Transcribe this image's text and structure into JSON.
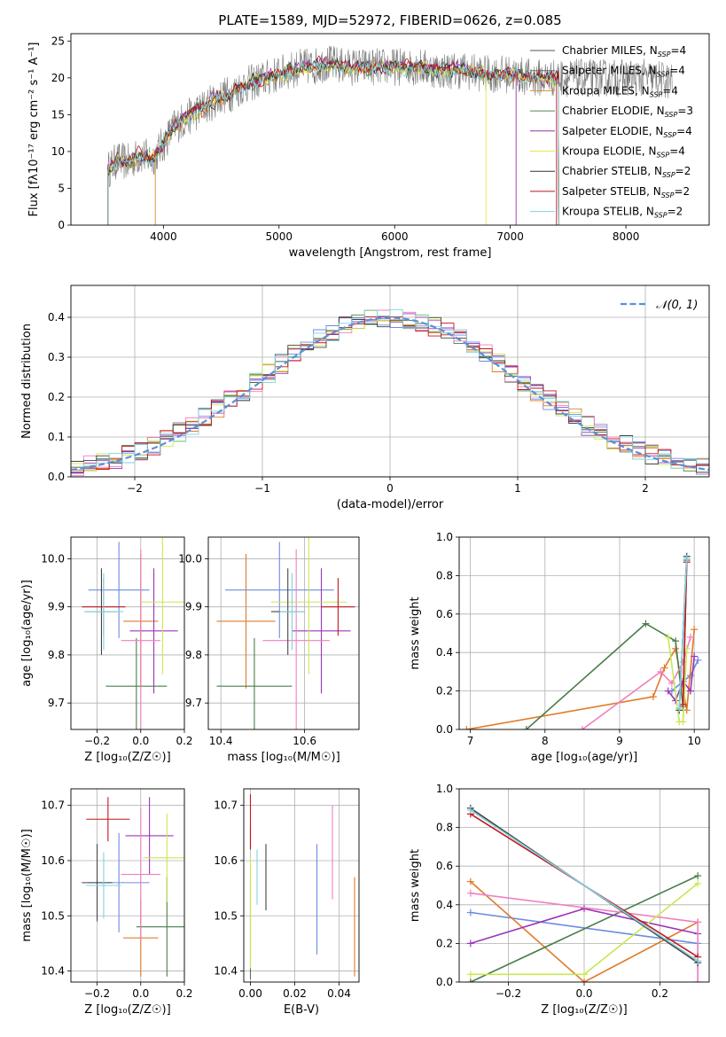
{
  "figure_title": "PLATE=1589, MJD=52972, FIBERID=0626, z=0.085",
  "colors": {
    "models": [
      "#555555",
      "#666666",
      "#d98d2e",
      "#4d8a4d",
      "#9932b0",
      "#e6e84a",
      "#333333",
      "#b8141b",
      "#7ad3e0"
    ],
    "fit": [
      "#6c8be0",
      "#e07b2a",
      "#4a7d4a",
      "#9b35b8",
      "#f07fc0",
      "#c8e852",
      "#444444",
      "#c4161c",
      "#7fd3e0"
    ],
    "grid": "#b0b0b0",
    "gaussian": "#5a90d8"
  },
  "chart_data": [
    {
      "id": "spectrum",
      "type": "line",
      "title": "PLATE=1589, MJD=52972, FIBERID=0626, z=0.085",
      "xlabel": "wavelength [Angstrom, rest frame]",
      "ylabel": "Flux [fλ10⁻¹⁷ erg cm⁻² s⁻¹ A⁻¹]",
      "xlim": [
        3200,
        8720
      ],
      "ylim": [
        0,
        26
      ],
      "xticks": [
        4000,
        5000,
        6000,
        7000,
        8000
      ],
      "yticks": [
        0,
        5,
        10,
        15,
        20,
        25
      ],
      "grid": false,
      "legend_position": "top-right",
      "legend": [
        "Chabrier MILES, N_SSP=4",
        "Salpeter MILES, N_SSP=4",
        "Kroupa MILES, N_SSP=4",
        "Chabrier ELODIE, N_SSP=3",
        "Salpeter ELODIE, N_SSP=4",
        "Kroupa ELODIE, N_SSP=4",
        "Chabrier STELIB, N_SSP=2",
        "Salpeter STELIB, N_SSP=2",
        "Kroupa STELIB, N_SSP=2"
      ],
      "continuum": {
        "x": [
          3520,
          3600,
          3700,
          3800,
          3900,
          4000,
          4100,
          4200,
          4300,
          4400,
          4500,
          4600,
          4700,
          4800,
          4900,
          5000,
          5100,
          5200,
          5300,
          5400,
          5600,
          5800,
          6000,
          6200,
          6400,
          6600,
          6800,
          7000,
          7200,
          7400,
          7600,
          7800,
          8000,
          8200,
          8400
        ],
        "y": [
          7.5,
          8.8,
          8.5,
          9.5,
          9.0,
          11.0,
          13.5,
          14.5,
          15.5,
          16.5,
          17.5,
          18.0,
          19.0,
          19.5,
          20.0,
          20.5,
          21.0,
          21.5,
          21.5,
          22.0,
          21.5,
          21.5,
          21.5,
          21.5,
          21.0,
          21.0,
          20.5,
          20.5,
          20.0,
          20.0,
          20.0,
          20.0,
          20.0,
          20.0,
          19.5
        ]
      },
      "model_range": [
        3520,
        7420
      ],
      "data_range": [
        3520,
        8400
      ]
    },
    {
      "id": "residuals",
      "type": "line",
      "xlabel": "(data-model)/error",
      "ylabel": "Normed distribution",
      "xlim": [
        -2.5,
        2.5
      ],
      "ylim": [
        0,
        0.48
      ],
      "xticks": [
        -2,
        -1,
        0,
        1,
        2
      ],
      "yticks": [
        0.0,
        0.1,
        0.2,
        0.3,
        0.4
      ],
      "grid": true,
      "legend_position": "top-right",
      "legend": [
        "𝒩(0, 1)"
      ],
      "bin_width": 0.1
    },
    {
      "id": "age_vs_Z",
      "type": "scatter",
      "xlabel": "Z [log₁₀(Z/Z☉)]",
      "ylabel": "age  [log₁₀(age/yr)]",
      "xlim": [
        -0.32,
        0.2
      ],
      "ylim": [
        9.645,
        10.045
      ],
      "xticks": [
        -0.2,
        0.0,
        0.2
      ],
      "yticks": [
        9.7,
        9.8,
        9.9,
        10.0
      ],
      "grid": true,
      "points": [
        {
          "x": -0.1,
          "y": 9.935,
          "xerr": 0.14,
          "yerr": 0.1
        },
        {
          "x": 0.0,
          "y": 9.87,
          "xerr": 0.08,
          "yerr": 0.14
        },
        {
          "x": -0.02,
          "y": 9.735,
          "xerr": 0.14,
          "yerr": 0.1
        },
        {
          "x": 0.06,
          "y": 9.85,
          "xerr": 0.11,
          "yerr": 0.13
        },
        {
          "x": 0.0,
          "y": 9.83,
          "xerr": 0.09,
          "yerr": 0.19
        },
        {
          "x": 0.1,
          "y": 9.91,
          "xerr": 0.1,
          "yerr": 0.15
        },
        {
          "x": -0.18,
          "y": 9.89,
          "xerr": 0.07,
          "yerr": 0.09
        },
        {
          "x": -0.17,
          "y": 9.9,
          "xerr": 0.1,
          "yerr": 0.06
        },
        {
          "x": -0.17,
          "y": 9.89,
          "xerr": 0.09,
          "yerr": 0.08
        }
      ]
    },
    {
      "id": "age_vs_mass",
      "type": "scatter",
      "xlabel": "mass [log₁₀(M/M☉)]",
      "ylabel": "",
      "xlim": [
        10.37,
        10.73
      ],
      "ylim": [
        9.645,
        10.045
      ],
      "xticks": [
        10.4,
        10.6
      ],
      "yticks": [
        9.7,
        9.8,
        9.9,
        10.0
      ],
      "grid": true,
      "points": [
        {
          "x": 10.54,
          "y": 9.935,
          "xerr": 0.13,
          "yerr": 0.1
        },
        {
          "x": 10.46,
          "y": 9.87,
          "xerr": 0.07,
          "yerr": 0.14
        },
        {
          "x": 10.48,
          "y": 9.735,
          "xerr": 0.09,
          "yerr": 0.1
        },
        {
          "x": 10.64,
          "y": 9.85,
          "xerr": 0.07,
          "yerr": 0.13
        },
        {
          "x": 10.58,
          "y": 9.83,
          "xerr": 0.08,
          "yerr": 0.19
        },
        {
          "x": 10.61,
          "y": 9.91,
          "xerr": 0.09,
          "yerr": 0.15
        },
        {
          "x": 10.56,
          "y": 9.89,
          "xerr": 0.04,
          "yerr": 0.09
        },
        {
          "x": 10.68,
          "y": 9.9,
          "xerr": 0.04,
          "yerr": 0.06
        },
        {
          "x": 10.57,
          "y": 9.89,
          "xerr": 0.03,
          "yerr": 0.08
        }
      ]
    },
    {
      "id": "mass_weight_vs_age",
      "type": "line",
      "xlabel": "age  [log₁₀(age/yr)]",
      "ylabel": "mass weight",
      "xlim": [
        6.85,
        10.2
      ],
      "ylim": [
        0,
        1.0
      ],
      "xticks": [
        7,
        8,
        9,
        10
      ],
      "yticks": [
        0.0,
        0.2,
        0.4,
        0.6,
        0.8,
        1.0
      ],
      "grid": true,
      "series": [
        {
          "x": [
            9.7,
            9.85,
            9.95,
            10.05
          ],
          "y": [
            0.2,
            0.25,
            0.28,
            0.36
          ]
        },
        {
          "x": [
            6.95,
            9.45,
            9.6,
            9.75,
            9.9,
            10.0
          ],
          "y": [
            0.0,
            0.17,
            0.32,
            0.42,
            0.1,
            0.52
          ]
        },
        {
          "x": [
            7.75,
            9.35,
            9.75,
            9.85,
            9.9
          ],
          "y": [
            0.0,
            0.55,
            0.46,
            0.12,
            0.88
          ]
        },
        {
          "x": [
            9.65,
            9.75,
            9.85,
            9.95,
            10.0
          ],
          "y": [
            0.2,
            0.15,
            0.25,
            0.2,
            0.38
          ]
        },
        {
          "x": [
            8.5,
            9.55,
            9.7,
            9.85,
            9.95
          ],
          "y": [
            0.0,
            0.3,
            0.24,
            0.35,
            0.48
          ]
        },
        {
          "x": [
            9.65,
            9.8,
            9.85,
            9.9
          ],
          "y": [
            0.48,
            0.04,
            0.04,
            0.42
          ]
        },
        {
          "x": [
            9.8,
            9.9
          ],
          "y": [
            0.1,
            0.9
          ]
        },
        {
          "x": [
            9.85,
            9.9
          ],
          "y": [
            0.13,
            0.87
          ]
        },
        {
          "x": [
            9.8,
            9.9
          ],
          "y": [
            0.11,
            0.89
          ]
        }
      ]
    },
    {
      "id": "mass_vs_Z",
      "type": "scatter",
      "xlabel": "Z [log₁₀(Z/Z☉)]",
      "ylabel": "mass [log₁₀(M/M☉)]",
      "xlim": [
        -0.32,
        0.2
      ],
      "ylim": [
        10.38,
        10.73
      ],
      "xticks": [
        -0.2,
        0.0,
        0.2
      ],
      "yticks": [
        10.4,
        10.5,
        10.6,
        10.7
      ],
      "grid": true,
      "points": [
        {
          "x": -0.1,
          "y": 10.56,
          "xerr": 0.14,
          "yerr": 0.09
        },
        {
          "x": 0.0,
          "y": 10.46,
          "xerr": 0.08,
          "yerr": 0.07
        },
        {
          "x": 0.12,
          "y": 10.48,
          "xerr": 0.14,
          "yerr": 0.09
        },
        {
          "x": 0.04,
          "y": 10.645,
          "xerr": 0.11,
          "yerr": 0.07
        },
        {
          "x": 0.0,
          "y": 10.575,
          "xerr": 0.09,
          "yerr": 0.12
        },
        {
          "x": 0.12,
          "y": 10.605,
          "xerr": 0.11,
          "yerr": 0.08
        },
        {
          "x": -0.2,
          "y": 10.56,
          "xerr": 0.07,
          "yerr": 0.07
        },
        {
          "x": -0.15,
          "y": 10.675,
          "xerr": 0.1,
          "yerr": 0.04
        },
        {
          "x": -0.17,
          "y": 10.555,
          "xerr": 0.08,
          "yerr": 0.06
        }
      ]
    },
    {
      "id": "mass_vs_ebv",
      "type": "scatter",
      "xlabel": "E(B-V)",
      "ylabel": "",
      "xlim": [
        -0.003,
        0.049
      ],
      "ylim": [
        10.38,
        10.73
      ],
      "xticks": [
        0.0,
        0.02,
        0.04
      ],
      "yticks": [
        10.4,
        10.5,
        10.6,
        10.7
      ],
      "grid": true,
      "points": [
        {
          "x": 0.03,
          "y": 10.53,
          "xerr": 0,
          "yerr": 0.1
        },
        {
          "x": 0.047,
          "y": 10.48,
          "xerr": 0,
          "yerr": 0.09
        },
        {
          "x": 0.0,
          "y": 10.475,
          "xerr": 0,
          "yerr": 0.09
        },
        {
          "x": 0.0,
          "y": 10.64,
          "xerr": 0,
          "yerr": 0.02
        },
        {
          "x": 0.037,
          "y": 10.615,
          "xerr": 0,
          "yerr": 0.085
        },
        {
          "x": 0.0,
          "y": 10.505,
          "xerr": 0,
          "yerr": 0.1
        },
        {
          "x": 0.007,
          "y": 10.57,
          "xerr": 0,
          "yerr": 0.06
        },
        {
          "x": 0.0,
          "y": 10.67,
          "xerr": 0,
          "yerr": 0.05
        },
        {
          "x": 0.003,
          "y": 10.57,
          "xerr": 0,
          "yerr": 0.05
        }
      ]
    },
    {
      "id": "mass_weight_vs_Z",
      "type": "line",
      "xlabel": "Z [log₁₀(Z/Z☉)]",
      "ylabel": "mass weight",
      "xlim": [
        -0.33,
        0.33
      ],
      "ylim": [
        0,
        1.0
      ],
      "xticks": [
        -0.2,
        0.0,
        0.2
      ],
      "yticks": [
        0.0,
        0.2,
        0.4,
        0.6,
        0.8,
        1.0
      ],
      "grid": true,
      "series": [
        {
          "x": [
            -0.3,
            0.3,
            0.3
          ],
          "y": [
            0.36,
            0.2,
            0.0
          ]
        },
        {
          "x": [
            -0.3,
            0.0,
            0.3
          ],
          "y": [
            0.52,
            0.0,
            0.31
          ]
        },
        {
          "x": [
            -0.3,
            0.3
          ],
          "y": [
            0.0,
            0.55
          ]
        },
        {
          "x": [
            -0.3,
            0.0,
            0.3
          ],
          "y": [
            0.2,
            0.38,
            0.25
          ]
        },
        {
          "x": [
            -0.3,
            0.3,
            0.3
          ],
          "y": [
            0.46,
            0.31,
            0.0
          ]
        },
        {
          "x": [
            -0.3,
            0.0,
            0.3
          ],
          "y": [
            0.04,
            0.04,
            0.51
          ]
        },
        {
          "x": [
            -0.3,
            0.3
          ],
          "y": [
            0.9,
            0.1
          ]
        },
        {
          "x": [
            -0.3,
            0.3
          ],
          "y": [
            0.87,
            0.13
          ]
        },
        {
          "x": [
            -0.3,
            0.3
          ],
          "y": [
            0.89,
            0.11
          ]
        }
      ]
    }
  ]
}
